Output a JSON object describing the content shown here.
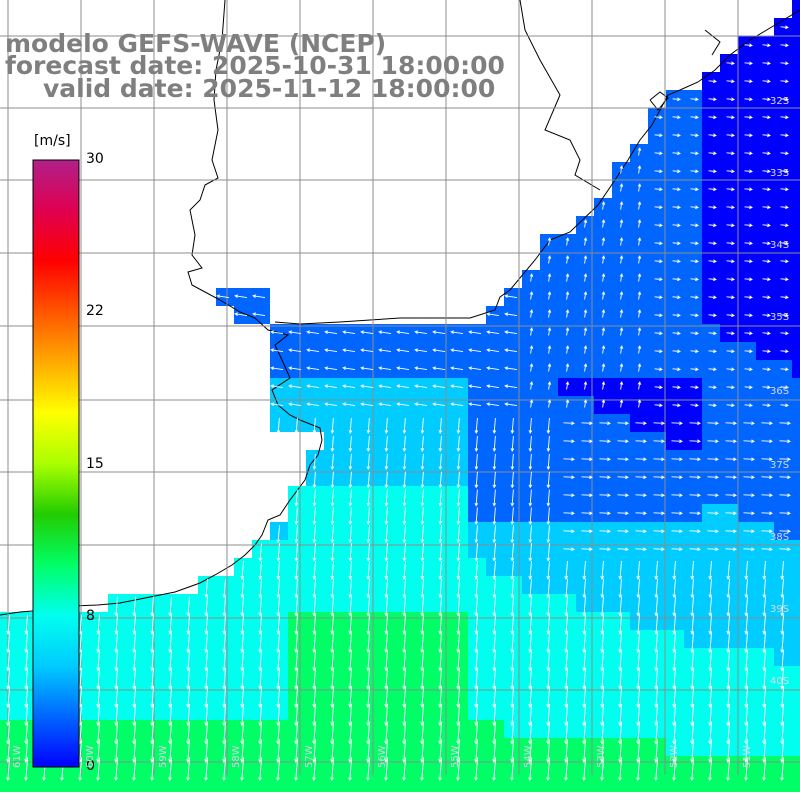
{
  "title": {
    "line1": "modelo GEFS-WAVE (NCEP)",
    "line2": "forecast date: 2025-10-31 18:00:00",
    "line3": "valid date: 2025-11-12 18:00:00"
  },
  "colorbar": {
    "unit": "[m/s]",
    "ticks": [
      "0",
      "8",
      "15",
      "22",
      "30"
    ],
    "min": 0,
    "max": 30,
    "colors": [
      "#0000ff",
      "#0066ff",
      "#00ccff",
      "#00ffee",
      "#00ff66",
      "#22cc00",
      "#aaff00",
      "#ffff00",
      "#ffaa00",
      "#ff5500",
      "#ff0000",
      "#e00050",
      "#b0208a"
    ]
  },
  "lat_labels": [
    "32S",
    "33S",
    "34S",
    "35S",
    "36S",
    "37S",
    "38S",
    "39S",
    "40S"
  ],
  "lon_labels": [
    "61W",
    "60W",
    "59W",
    "58W",
    "57W",
    "56W",
    "55W",
    "54W",
    "53W",
    "52W",
    "51W"
  ],
  "colors": {
    "land": "#ffffff",
    "coast": "#000000",
    "grid": "#8c8c8c",
    "arrow": "#ffffff",
    "title": "#7f7f7f"
  }
}
